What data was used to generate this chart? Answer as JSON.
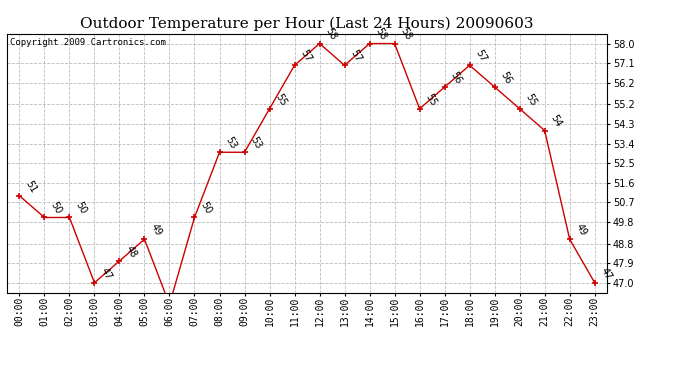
{
  "title": "Outdoor Temperature per Hour (Last 24 Hours) 20090603",
  "copyright": "Copyright 2009 Cartronics.com",
  "hours": [
    "00:00",
    "01:00",
    "02:00",
    "03:00",
    "04:00",
    "05:00",
    "06:00",
    "07:00",
    "08:00",
    "09:00",
    "10:00",
    "11:00",
    "12:00",
    "13:00",
    "14:00",
    "15:00",
    "16:00",
    "17:00",
    "18:00",
    "19:00",
    "20:00",
    "21:00",
    "22:00",
    "23:00"
  ],
  "temps": [
    51,
    50,
    50,
    47,
    48,
    49,
    46,
    50,
    53,
    53,
    55,
    57,
    58,
    57,
    58,
    58,
    55,
    56,
    57,
    56,
    55,
    54,
    49,
    47
  ],
  "yticks": [
    47.0,
    47.9,
    48.8,
    49.8,
    50.7,
    51.6,
    52.5,
    53.4,
    54.3,
    55.2,
    56.2,
    57.1,
    58.0
  ],
  "line_color": "#cc0000",
  "marker_color": "#cc0000",
  "bg_color": "#ffffff",
  "grid_color": "#bbbbbb",
  "title_fontsize": 11,
  "copyright_fontsize": 6.5,
  "label_fontsize": 7,
  "tick_fontsize": 7,
  "ylim_min": 46.55,
  "ylim_max": 58.45
}
